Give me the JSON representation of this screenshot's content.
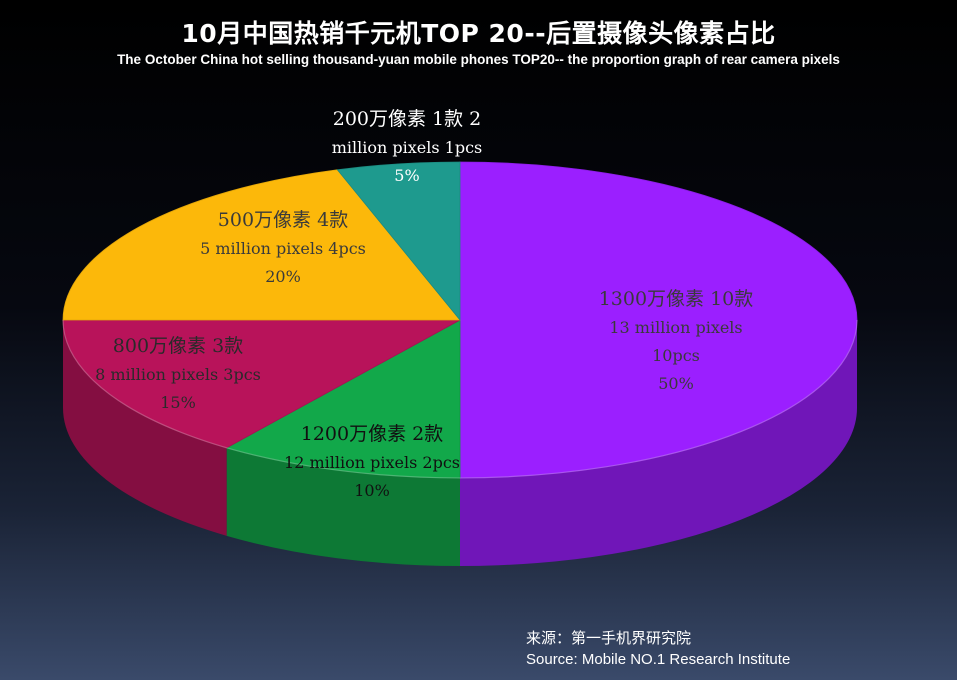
{
  "header": {
    "title": "10月中国热销千元机TOP 20--后置摄像头像素占比",
    "subtitle": "The October China hot selling thousand-yuan mobile phones TOP20-- the proportion graph of rear camera pixels"
  },
  "chart_data": {
    "type": "pie",
    "title": "10月中国热销千元机TOP 20--后置摄像头像素占比",
    "subtitle": "The October China hot selling thousand-yuan mobile phones TOP20-- the proportion graph of rear camera pixels",
    "slices": [
      {
        "label_cn": "1300万像素 10款",
        "label_en_lines": [
          "13 million pixels",
          "10pcs"
        ],
        "count": 10,
        "percent": "50%",
        "value": 50,
        "color": "#9b1fff"
      },
      {
        "label_cn": "1200万像素 2款",
        "label_en_lines": [
          "12 million pixels 2pcs"
        ],
        "count": 2,
        "percent": "10%",
        "value": 10,
        "color": "#12a84a"
      },
      {
        "label_cn": "800万像素 3款",
        "label_en_lines": [
          "8 million pixels 3pcs"
        ],
        "count": 3,
        "percent": "15%",
        "value": 15,
        "color": "#b8135a"
      },
      {
        "label_cn": "500万像素 4款",
        "label_en_lines": [
          "5 million pixels 4pcs"
        ],
        "count": 4,
        "percent": "20%",
        "value": 20,
        "color": "#fcb80a"
      },
      {
        "label_cn": "200万像素 1款 2",
        "label_en_lines": [
          "million pixels 1pcs"
        ],
        "count": 1,
        "percent": "5%",
        "value": 5,
        "color": "#1e9a8e"
      }
    ]
  },
  "source": {
    "line_cn": "来源：第一手机界研究院",
    "line_en": "Source: Mobile NO.1 Research Institute"
  }
}
